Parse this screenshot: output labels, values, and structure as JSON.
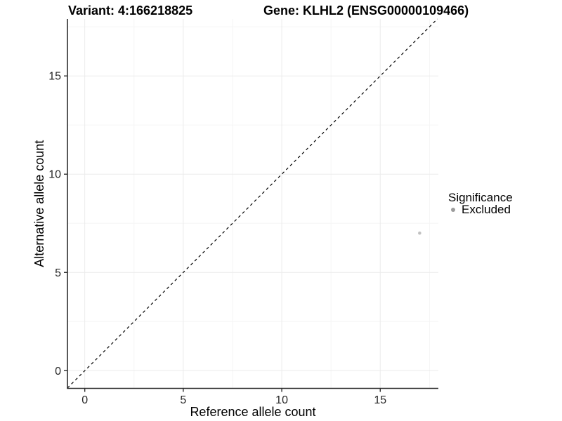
{
  "header": {
    "variant_title": "Variant: 4:166218825",
    "gene_title": "Gene: KLHL2 (ENSG00000109466)"
  },
  "legend": {
    "title": "Significance",
    "items": [
      {
        "label": "Excluded",
        "color": "#9c9c9c"
      }
    ]
  },
  "style": {
    "background": "#ffffff",
    "grid_major": "#ebebeb",
    "grid_minor": "#f5f5f5",
    "axis_line": "#2e2e2e",
    "tick_color": "#2e2e2e",
    "tick_label_color": "#262626",
    "axis_title_color": "#000000",
    "point_color": "#c1c1c1",
    "reference_line_color": "#000000"
  },
  "chart_data": {
    "type": "scatter",
    "title": "Variant: 4:166218825 | Gene: KLHL2 (ENSG00000109466)",
    "xlabel": "Reference allele count",
    "ylabel": "Alternative allele count",
    "xlim": [
      -0.88,
      17.95
    ],
    "ylim": [
      -0.9,
      17.9
    ],
    "x_ticks": [
      0,
      5,
      10,
      15
    ],
    "y_ticks": [
      0,
      5,
      10,
      15
    ],
    "x_minor_ticks": [
      2.5,
      7.5,
      12.5,
      17.5
    ],
    "y_minor_ticks": [
      2.5,
      7.5,
      12.5,
      17.5
    ],
    "grid": true,
    "legend_position": "right",
    "legend_title": "Significance",
    "series": [
      {
        "name": "Excluded",
        "marker": "circle",
        "color": "#c1c1c1",
        "points": [
          {
            "x": 17,
            "y": 7
          }
        ]
      }
    ],
    "reference_line": {
      "type": "identity",
      "slope": 1,
      "intercept": 0,
      "linestyle": "dashed",
      "color": "#000000"
    }
  }
}
